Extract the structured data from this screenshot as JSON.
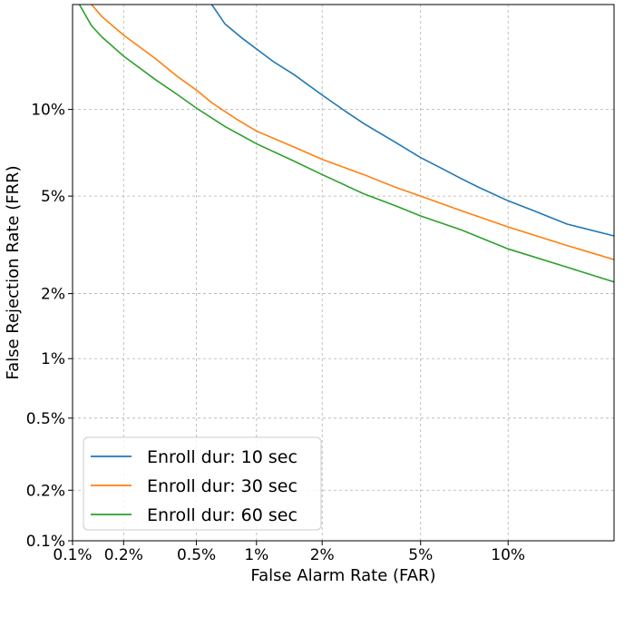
{
  "chart_data": {
    "type": "line",
    "xlabel": "False Alarm Rate (FAR)",
    "ylabel": "False Rejection Rate (FRR)",
    "xscale": "probit",
    "yscale": "probit",
    "xlim": [
      0.1,
      20
    ],
    "ylim": [
      0.1,
      20
    ],
    "x_ticks": [
      {
        "value": 0.1,
        "label": "0.1%"
      },
      {
        "value": 0.2,
        "label": "0.2%"
      },
      {
        "value": 0.5,
        "label": "0.5%"
      },
      {
        "value": 1,
        "label": "1%"
      },
      {
        "value": 2,
        "label": "2%"
      },
      {
        "value": 5,
        "label": "5%"
      },
      {
        "value": 10,
        "label": "10%"
      }
    ],
    "y_ticks": [
      {
        "value": 0.1,
        "label": "0.1%"
      },
      {
        "value": 0.2,
        "label": "0.2%"
      },
      {
        "value": 0.5,
        "label": "0.5%"
      },
      {
        "value": 1,
        "label": "1%"
      },
      {
        "value": 2,
        "label": "2%"
      },
      {
        "value": 5,
        "label": "5%"
      },
      {
        "value": 10,
        "label": "10%"
      }
    ],
    "grid": true,
    "legend_position": "bottom-left",
    "series": [
      {
        "name": "Enroll dur: 10 sec",
        "color": "#1f77b4",
        "points": [
          [
            0.6,
            20
          ],
          [
            0.7,
            17.8
          ],
          [
            0.85,
            16.3
          ],
          [
            1,
            15.2
          ],
          [
            1.2,
            14.0
          ],
          [
            1.5,
            12.8
          ],
          [
            2,
            11.1
          ],
          [
            2.5,
            9.9
          ],
          [
            3,
            9.0
          ],
          [
            4,
            7.8
          ],
          [
            5,
            6.9
          ],
          [
            6,
            6.3
          ],
          [
            7,
            5.8
          ],
          [
            8,
            5.4
          ],
          [
            10,
            4.8
          ],
          [
            12,
            4.4
          ],
          [
            15,
            3.9
          ],
          [
            20,
            3.5
          ]
        ]
      },
      {
        "name": "Enroll dur: 30 sec",
        "color": "#ff7f0e",
        "points": [
          [
            0.13,
            20
          ],
          [
            0.15,
            18.6
          ],
          [
            0.2,
            16.6
          ],
          [
            0.3,
            14.3
          ],
          [
            0.4,
            12.6
          ],
          [
            0.5,
            11.5
          ],
          [
            0.6,
            10.5
          ],
          [
            0.8,
            9.3
          ],
          [
            1,
            8.5
          ],
          [
            1.5,
            7.5
          ],
          [
            2,
            6.8
          ],
          [
            3,
            6.0
          ],
          [
            4,
            5.4
          ],
          [
            5,
            5.0
          ],
          [
            7,
            4.4
          ],
          [
            10,
            3.8
          ],
          [
            15,
            3.2
          ],
          [
            20,
            2.8
          ]
        ]
      },
      {
        "name": "Enroll dur: 60 sec",
        "color": "#2ca02c",
        "points": [
          [
            0.11,
            20
          ],
          [
            0.13,
            17.6
          ],
          [
            0.15,
            16.4
          ],
          [
            0.2,
            14.5
          ],
          [
            0.3,
            12.4
          ],
          [
            0.4,
            11.1
          ],
          [
            0.5,
            10.1
          ],
          [
            0.7,
            8.8
          ],
          [
            1,
            7.7
          ],
          [
            1.5,
            6.7
          ],
          [
            2,
            6.0
          ],
          [
            3,
            5.1
          ],
          [
            4,
            4.6
          ],
          [
            5,
            4.2
          ],
          [
            7,
            3.7
          ],
          [
            10,
            3.1
          ],
          [
            15,
            2.6
          ],
          [
            20,
            2.25
          ]
        ]
      }
    ]
  }
}
